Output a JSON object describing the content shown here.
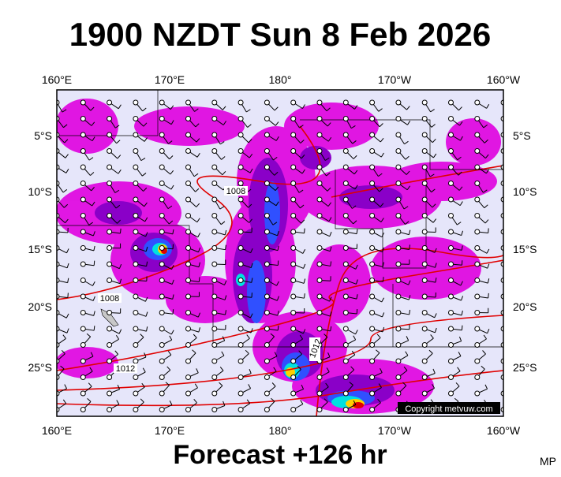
{
  "header": {
    "title": "1900 NZDT Sun 8 Feb 2026"
  },
  "map": {
    "lon_labels": [
      "160°E",
      "170°E",
      "180°",
      "170°W",
      "160°W"
    ],
    "lat_labels": [
      "5°S",
      "10°S",
      "15°S",
      "20°S",
      "25°S"
    ],
    "isobar_labels": [
      "1008",
      "1008",
      "1012",
      "1012"
    ],
    "copyright": "Copyright metvuw.com"
  },
  "footer": {
    "forecast": "Forecast +126 hr",
    "initials": "MP"
  }
}
